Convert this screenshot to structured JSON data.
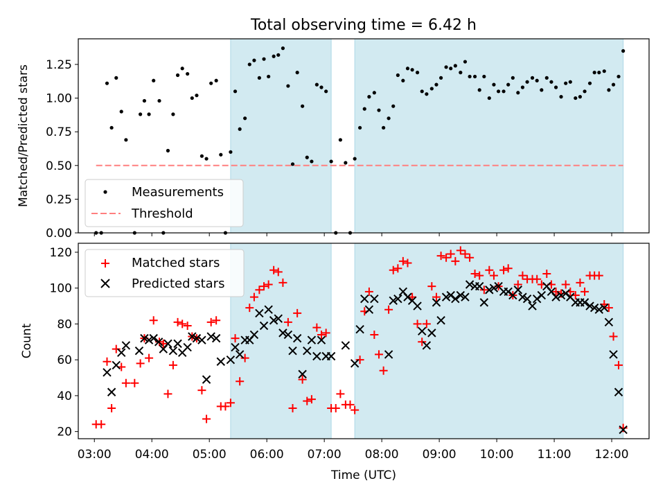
{
  "figure": {
    "title": "Total observing time = 6.42 h"
  },
  "colors": {
    "shade": "#add8e6",
    "measurements": "#000000",
    "threshold": "#ff7f7f",
    "matched": "#ff0000",
    "predicted": "#000000"
  },
  "chart_data": [
    {
      "type": "scatter",
      "ylabel": "Matched/Predicted stars",
      "xlabel": "",
      "xlim": [
        2.72,
        12.65
      ],
      "ylim": [
        0,
        1.44
      ],
      "xticks": [
        3,
        4,
        5,
        6,
        7,
        8,
        9,
        10,
        11,
        12
      ],
      "xtick_labels": [],
      "yticks": [
        0,
        0.25,
        0.5,
        0.75,
        1.0,
        1.25
      ],
      "ytick_labels": [
        "0.00",
        "0.25",
        "0.50",
        "0.75",
        "1.00",
        "1.25"
      ],
      "shaded_intervals": [
        [
          5.37,
          7.12
        ],
        [
          7.53,
          12.2
        ]
      ],
      "legend": {
        "position": "lower left",
        "entries": [
          "Measurements",
          "Threshold"
        ]
      },
      "threshold": {
        "name": "Threshold",
        "y": 0.5,
        "x_range": [
          3.03,
          12.2
        ]
      },
      "series": [
        {
          "name": "Measurements",
          "x": [
            3.03,
            3.12,
            3.22,
            3.3,
            3.38,
            3.47,
            3.55,
            3.7,
            3.8,
            3.87,
            3.95,
            4.03,
            4.13,
            4.2,
            4.28,
            4.37,
            4.45,
            4.53,
            4.62,
            4.7,
            4.78,
            4.87,
            4.95,
            5.03,
            5.12,
            5.2,
            5.28,
            5.37,
            5.45,
            5.53,
            5.62,
            5.7,
            5.78,
            5.87,
            5.95,
            6.03,
            6.12,
            6.2,
            6.28,
            6.37,
            6.45,
            6.53,
            6.62,
            6.7,
            6.78,
            6.87,
            6.95,
            7.03,
            7.12,
            7.2,
            7.28,
            7.37,
            7.45,
            7.53,
            7.62,
            7.7,
            7.78,
            7.87,
            7.95,
            8.03,
            8.12,
            8.2,
            8.28,
            8.37,
            8.45,
            8.53,
            8.62,
            8.7,
            8.78,
            8.87,
            8.95,
            9.03,
            9.12,
            9.2,
            9.28,
            9.37,
            9.45,
            9.53,
            9.62,
            9.7,
            9.78,
            9.87,
            9.95,
            10.03,
            10.12,
            10.2,
            10.28,
            10.37,
            10.45,
            10.53,
            10.62,
            10.7,
            10.78,
            10.87,
            10.95,
            11.03,
            11.12,
            11.2,
            11.28,
            11.37,
            11.45,
            11.53,
            11.62,
            11.7,
            11.78,
            11.87,
            11.95,
            12.03,
            12.12,
            12.2
          ],
          "y": [
            0.0,
            0.0,
            1.11,
            0.78,
            1.15,
            0.9,
            0.69,
            0.0,
            0.88,
            0.98,
            0.88,
            1.13,
            0.98,
            0.0,
            0.61,
            0.88,
            1.17,
            1.22,
            1.18,
            1.0,
            1.02,
            0.57,
            0.55,
            1.11,
            1.13,
            0.58,
            0.0,
            0.6,
            1.05,
            0.77,
            0.85,
            1.25,
            1.28,
            1.15,
            1.29,
            1.16,
            1.31,
            1.32,
            1.37,
            1.09,
            0.51,
            1.19,
            0.94,
            0.56,
            0.53,
            1.1,
            1.08,
            1.05,
            0.53,
            0.0,
            0.69,
            0.52,
            0.0,
            0.55,
            0.78,
            0.92,
            1.01,
            1.04,
            0.91,
            0.78,
            0.85,
            0.94,
            1.17,
            1.13,
            1.22,
            1.21,
            1.19,
            1.05,
            1.03,
            1.07,
            1.1,
            1.15,
            1.23,
            1.22,
            1.24,
            1.19,
            1.27,
            1.16,
            1.16,
            1.06,
            1.16,
            1.0,
            1.1,
            1.05,
            1.05,
            1.1,
            1.15,
            1.04,
            1.08,
            1.12,
            1.15,
            1.13,
            1.06,
            1.15,
            1.12,
            1.08,
            1.01,
            1.11,
            1.12,
            1.0,
            1.01,
            1.05,
            1.11,
            1.19,
            1.19,
            1.2,
            1.06,
            1.1,
            1.16,
            1.35
          ]
        }
      ]
    },
    {
      "type": "scatter",
      "ylabel": "Count",
      "xlabel": "Time (UTC)",
      "xlim": [
        2.72,
        12.65
      ],
      "ylim": [
        16,
        125
      ],
      "xticks": [
        3,
        4,
        5,
        6,
        7,
        8,
        9,
        10,
        11,
        12
      ],
      "xtick_labels": [
        "03:00",
        "04:00",
        "05:00",
        "06:00",
        "07:00",
        "08:00",
        "09:00",
        "10:00",
        "11:00",
        "12:00"
      ],
      "yticks": [
        20,
        40,
        60,
        80,
        100,
        120
      ],
      "ytick_labels": [
        "20",
        "40",
        "60",
        "80",
        "100",
        "120"
      ],
      "shaded_intervals": [
        [
          5.37,
          7.12
        ],
        [
          7.53,
          12.2
        ]
      ],
      "legend": {
        "position": "upper left",
        "entries": [
          "Matched stars",
          "Predicted stars"
        ]
      },
      "series": [
        {
          "name": "Matched stars",
          "marker": "+",
          "x": [
            3.03,
            3.12,
            3.22,
            3.3,
            3.38,
            3.47,
            3.55,
            3.7,
            3.8,
            3.87,
            3.95,
            4.03,
            4.13,
            4.2,
            4.28,
            4.37,
            4.45,
            4.53,
            4.62,
            4.7,
            4.78,
            4.87,
            4.95,
            5.03,
            5.12,
            5.2,
            5.28,
            5.37,
            5.45,
            5.53,
            5.62,
            5.7,
            5.78,
            5.87,
            5.95,
            6.03,
            6.12,
            6.2,
            6.28,
            6.37,
            6.45,
            6.53,
            6.62,
            6.7,
            6.78,
            6.87,
            6.95,
            7.03,
            7.12,
            7.2,
            7.28,
            7.37,
            7.45,
            7.53,
            7.62,
            7.7,
            7.78,
            7.87,
            7.95,
            8.03,
            8.12,
            8.2,
            8.28,
            8.37,
            8.45,
            8.53,
            8.62,
            8.7,
            8.78,
            8.87,
            8.95,
            9.03,
            9.12,
            9.2,
            9.28,
            9.37,
            9.45,
            9.53,
            9.62,
            9.7,
            9.78,
            9.87,
            9.95,
            10.03,
            10.12,
            10.2,
            10.28,
            10.37,
            10.45,
            10.53,
            10.62,
            10.7,
            10.78,
            10.87,
            10.95,
            11.03,
            11.12,
            11.2,
            11.28,
            11.37,
            11.45,
            11.53,
            11.62,
            11.7,
            11.78,
            11.87,
            11.95,
            12.03,
            12.12,
            12.2
          ],
          "y": [
            24,
            24,
            59,
            33,
            66,
            56,
            47,
            47,
            58,
            72,
            61,
            82,
            70,
            69,
            41,
            57,
            81,
            80,
            79,
            73,
            72,
            43,
            27,
            81,
            82,
            34,
            34,
            36,
            72,
            48,
            61,
            89,
            95,
            99,
            101,
            102,
            110,
            109,
            103,
            81,
            33,
            86,
            49,
            37,
            38,
            78,
            74,
            75,
            33,
            33,
            41,
            35,
            35,
            32,
            60,
            87,
            98,
            74,
            63,
            54,
            88,
            110,
            111,
            115,
            114,
            95,
            80,
            70,
            80,
            101,
            95,
            118,
            117,
            119,
            115,
            121,
            119,
            117,
            108,
            107,
            99,
            110,
            107,
            101,
            110,
            111,
            96,
            102,
            107,
            105,
            105,
            105,
            102,
            108,
            102,
            98,
            97,
            102,
            98,
            96,
            103,
            98,
            107,
            107,
            107,
            91,
            89,
            73,
            57,
            22
          ]
        },
        {
          "name": "Predicted stars",
          "marker": "x",
          "x": [
            3.22,
            3.3,
            3.38,
            3.47,
            3.55,
            3.78,
            3.87,
            3.95,
            4.03,
            4.12,
            4.2,
            4.28,
            4.37,
            4.45,
            4.53,
            4.62,
            4.7,
            4.78,
            4.87,
            4.95,
            5.03,
            5.12,
            5.2,
            5.37,
            5.45,
            5.53,
            5.62,
            5.7,
            5.78,
            5.87,
            5.95,
            6.03,
            6.12,
            6.2,
            6.28,
            6.37,
            6.45,
            6.53,
            6.62,
            6.7,
            6.78,
            6.87,
            6.95,
            7.03,
            7.12,
            7.37,
            7.53,
            7.62,
            7.7,
            7.78,
            7.87,
            8.12,
            8.2,
            8.28,
            8.37,
            8.45,
            8.53,
            8.62,
            8.7,
            8.78,
            8.87,
            8.95,
            9.03,
            9.12,
            9.2,
            9.28,
            9.37,
            9.45,
            9.53,
            9.62,
            9.7,
            9.78,
            9.87,
            9.95,
            10.03,
            10.12,
            10.2,
            10.28,
            10.37,
            10.45,
            10.53,
            10.62,
            10.7,
            10.78,
            10.87,
            10.95,
            11.03,
            11.12,
            11.2,
            11.28,
            11.37,
            11.45,
            11.53,
            11.62,
            11.7,
            11.78,
            11.87,
            11.95,
            12.03,
            12.12,
            12.2
          ],
          "y": [
            53,
            42,
            57,
            64,
            68,
            65,
            72,
            71,
            72,
            70,
            66,
            69,
            65,
            69,
            64,
            67,
            73,
            72,
            71,
            49,
            73,
            72,
            59,
            60,
            67,
            63,
            71,
            71,
            74,
            86,
            79,
            88,
            82,
            83,
            75,
            74,
            65,
            72,
            52,
            65,
            71,
            62,
            71,
            62,
            62,
            68,
            58,
            77,
            94,
            88,
            94,
            63,
            93,
            94,
            98,
            95,
            93,
            90,
            76,
            68,
            75,
            92,
            82,
            95,
            96,
            94,
            96,
            95,
            102,
            101,
            101,
            92,
            99,
            100,
            101,
            98,
            98,
            96,
            99,
            95,
            94,
            90,
            94,
            96,
            101,
            98,
            95,
            96,
            97,
            95,
            92,
            92,
            92,
            90,
            89,
            88,
            89,
            81,
            63,
            42,
            21
          ]
        }
      ]
    }
  ]
}
